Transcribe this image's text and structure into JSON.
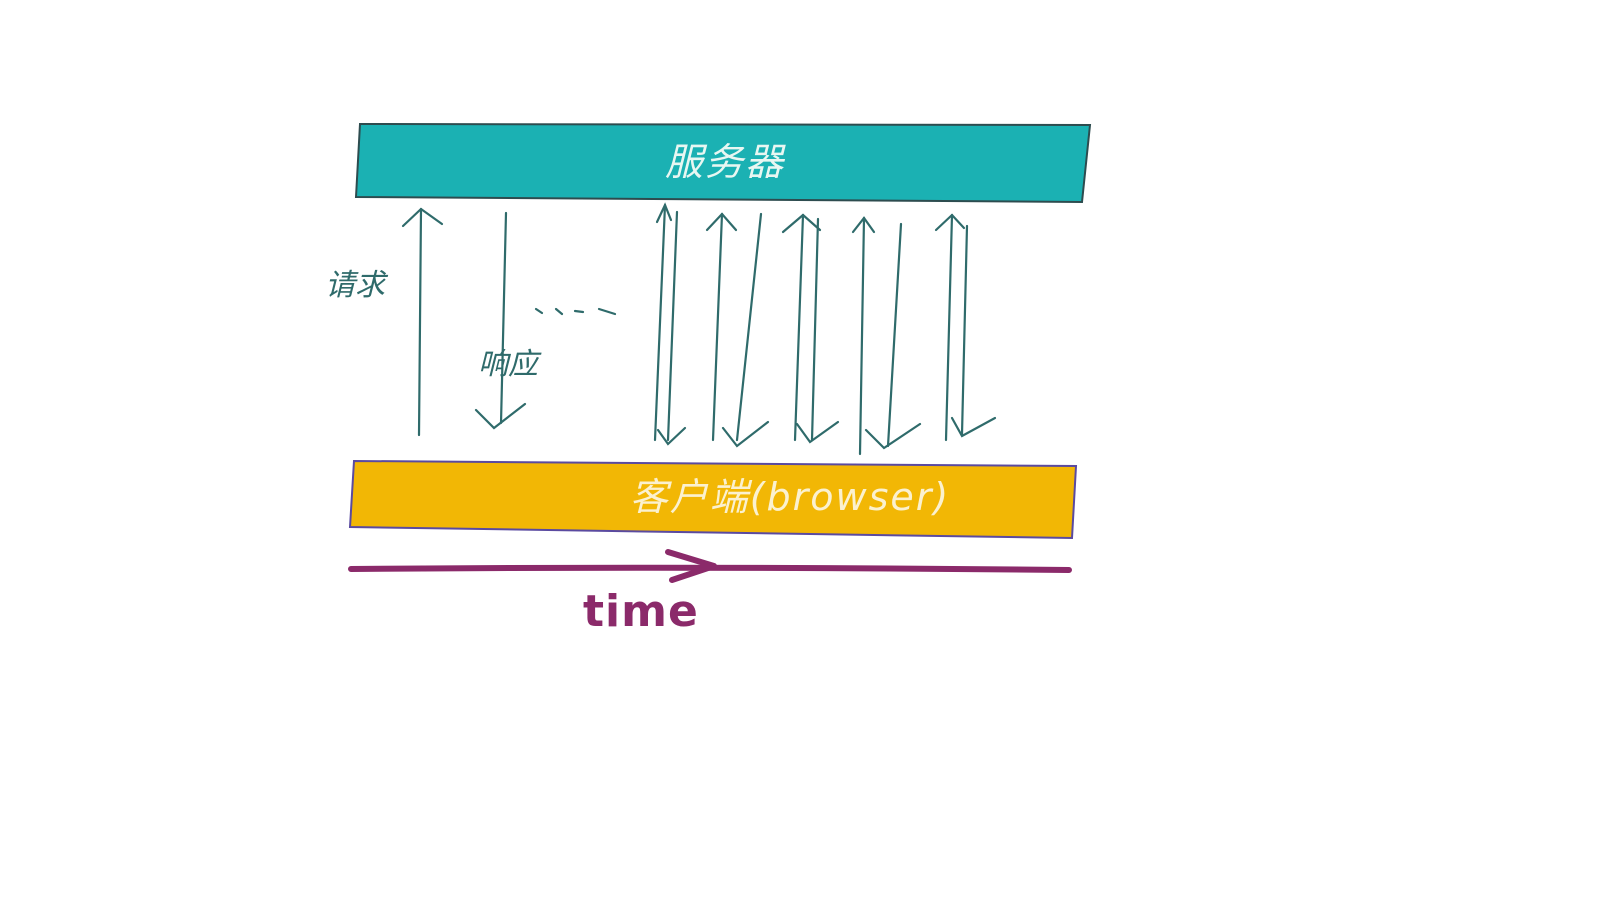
{
  "server": {
    "label": "服务器",
    "color": "#1bb1b3"
  },
  "client": {
    "label": "客户端(browser)",
    "color": "#f2b705"
  },
  "arrows": {
    "request_label": "请求",
    "response_label": "响应",
    "ellipsis": "…",
    "color": "#2f6b6b"
  },
  "timeline": {
    "label": "time",
    "color": "#8b2a6a"
  }
}
